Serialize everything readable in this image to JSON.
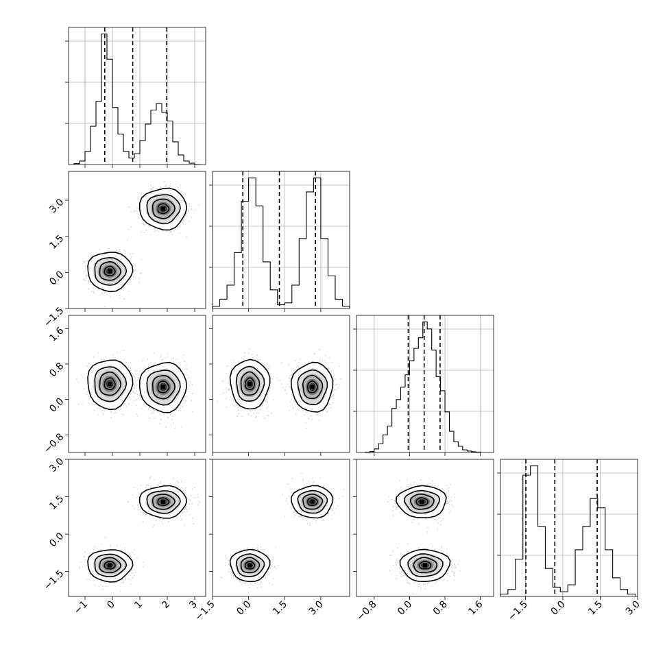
{
  "chart_data": {
    "type": "corner",
    "grid": true,
    "parameters": [
      {
        "range": [
          -1.6,
          3.4
        ],
        "ticks": [
          -1,
          0,
          1,
          2,
          3
        ],
        "tick_labels": [
          "−1",
          "0",
          "1",
          "2",
          "3"
        ],
        "quantiles": [
          -0.28,
          0.74,
          1.98
        ]
      },
      {
        "range": [
          -1.5,
          4.2
        ],
        "ticks": [
          -1.5,
          0.0,
          1.5,
          3.0
        ],
        "tick_labels": [
          "−1.5",
          "0.0",
          "1.5",
          "3.0"
        ],
        "quantiles": [
          -0.24,
          1.28,
          2.78
        ]
      },
      {
        "range": [
          -1.2,
          1.9
        ],
        "ticks": [
          -0.8,
          0.0,
          0.8,
          1.6
        ],
        "tick_labels": [
          "−0.8",
          "0.0",
          "0.8",
          "1.6"
        ],
        "quantiles": [
          -0.03,
          0.33,
          0.69
        ]
      },
      {
        "range": [
          -2.5,
          3.0
        ],
        "ticks": [
          -1.5,
          0.0,
          1.5,
          3.0
        ],
        "tick_labels": [
          "−1.5",
          "0.0",
          "1.5",
          "3.0"
        ],
        "quantiles": [
          -1.48,
          -0.32,
          1.38
        ]
      }
    ],
    "histograms": [
      {
        "edges": [
          -1.4,
          -1.2,
          -1.0,
          -0.8,
          -0.6,
          -0.4,
          -0.2,
          0.0,
          0.2,
          0.4,
          0.6,
          0.8,
          1.0,
          1.2,
          1.4,
          1.6,
          1.8,
          2.0,
          2.2,
          2.4,
          2.6,
          2.8,
          3.0,
          3.2
        ],
        "counts": [
          2,
          8,
          30,
          88,
          145,
          300,
          242,
          131,
          70,
          30,
          15,
          25,
          55,
          93,
          125,
          140,
          120,
          100,
          52,
          22,
          8,
          3,
          0
        ]
      },
      {
        "edges": [
          -1.5,
          -1.2,
          -0.9,
          -0.6,
          -0.3,
          0.0,
          0.3,
          0.6,
          0.9,
          1.2,
          1.5,
          1.8,
          2.1,
          2.4,
          2.7,
          3.0,
          3.3,
          3.6,
          3.9,
          4.2
        ],
        "counts": [
          5,
          20,
          50,
          120,
          230,
          280,
          220,
          100,
          40,
          8,
          12,
          50,
          150,
          250,
          280,
          150,
          70,
          20,
          5
        ]
      },
      {
        "edges": [
          -1.0,
          -0.9,
          -0.8,
          -0.7,
          -0.6,
          -0.5,
          -0.4,
          -0.3,
          -0.2,
          -0.1,
          0.0,
          0.1,
          0.2,
          0.3,
          0.4,
          0.5,
          0.6,
          0.7,
          0.8,
          0.9,
          1.0,
          1.1,
          1.2,
          1.3,
          1.4,
          1.5,
          1.6
        ],
        "counts": [
          2,
          5,
          20,
          50,
          100,
          150,
          250,
          300,
          370,
          440,
          520,
          590,
          650,
          740,
          700,
          580,
          430,
          350,
          230,
          120,
          60,
          35,
          15,
          8,
          4,
          2
        ]
      },
      {
        "edges": [
          -2.5,
          -2.2,
          -1.9,
          -1.6,
          -1.3,
          -1.0,
          -0.7,
          -0.4,
          -0.1,
          0.2,
          0.5,
          0.8,
          1.1,
          1.4,
          1.7,
          2.0,
          2.3,
          2.6,
          2.9
        ],
        "counts": [
          5,
          15,
          80,
          260,
          280,
          150,
          60,
          20,
          10,
          25,
          100,
          150,
          210,
          190,
          100,
          40,
          15,
          5
        ]
      }
    ],
    "clusters": [
      {
        "center": [
          -0.1,
          0.05,
          0.35,
          -1.25
        ],
        "sd": [
          0.38,
          0.38,
          0.26,
          0.3
        ]
      },
      {
        "center": [
          1.85,
          2.65,
          0.28,
          1.3
        ],
        "sd": [
          0.4,
          0.4,
          0.26,
          0.3
        ]
      }
    ]
  }
}
